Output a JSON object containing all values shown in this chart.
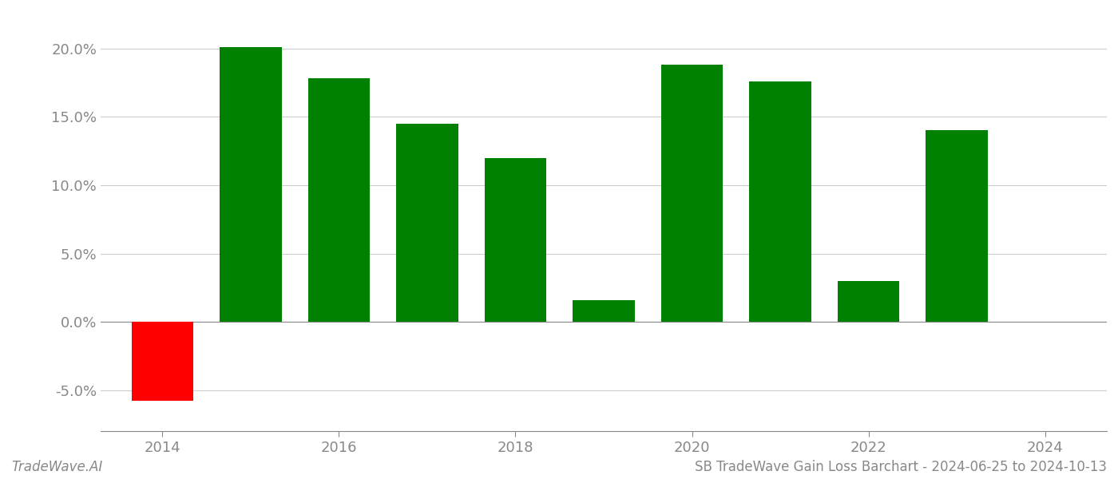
{
  "years": [
    2014,
    2015,
    2016,
    2017,
    2018,
    2019,
    2020,
    2021,
    2022,
    2023
  ],
  "values": [
    -0.058,
    0.201,
    0.178,
    0.145,
    0.12,
    0.016,
    0.188,
    0.176,
    0.03,
    0.14
  ],
  "colors": [
    "#ff0000",
    "#008000",
    "#008000",
    "#008000",
    "#008000",
    "#008000",
    "#008000",
    "#008000",
    "#008000",
    "#008000"
  ],
  "title": "SB TradeWave Gain Loss Barchart - 2024-06-25 to 2024-10-13",
  "watermark": "TradeWave.AI",
  "ylim": [
    -0.08,
    0.225
  ],
  "yticks": [
    -0.05,
    0.0,
    0.05,
    0.1,
    0.15,
    0.2
  ],
  "xlim": [
    2013.3,
    2024.7
  ],
  "xticks": [
    2014,
    2016,
    2018,
    2020,
    2022,
    2024
  ],
  "bar_width": 0.7,
  "background_color": "#ffffff",
  "grid_color": "#cccccc",
  "axis_color": "#888888",
  "tick_color": "#888888",
  "title_fontsize": 12,
  "watermark_fontsize": 12,
  "tick_fontsize": 13
}
